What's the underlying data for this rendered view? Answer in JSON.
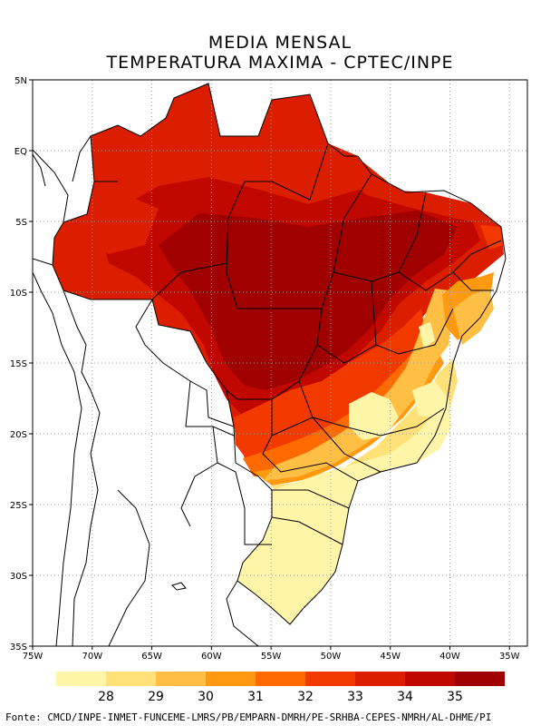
{
  "title": {
    "line1": "MEDIA MENSAL",
    "line2": "TEMPERATURA MAXIMA - CPTEC/INPE"
  },
  "axes": {
    "lat_labels": [
      "5N",
      "EQ",
      "5S",
      "10S",
      "15S",
      "20S",
      "25S",
      "30S",
      "35S"
    ],
    "lat_values": [
      5,
      0,
      -5,
      -10,
      -15,
      -20,
      -25,
      -30,
      -35
    ],
    "lon_labels": [
      "75W",
      "70W",
      "65W",
      "60W",
      "55W",
      "50W",
      "45W",
      "40W",
      "35W"
    ],
    "lon_values": [
      -75,
      -70,
      -65,
      -60,
      -55,
      -50,
      -45,
      -40,
      -35
    ],
    "lon_range": [
      -75,
      -33.5
    ],
    "lat_range": [
      -35,
      5
    ],
    "grid": "dotted"
  },
  "legend": {
    "labels": [
      "28",
      "29",
      "30",
      "31",
      "32",
      "33",
      "34",
      "35"
    ],
    "colors": [
      "#fff5a8",
      "#ffe178",
      "#ffbe44",
      "#ff9a10",
      "#ff6a00",
      "#f23a00",
      "#dc1e00",
      "#c00800",
      "#a00000"
    ]
  },
  "colors": {
    "c28": "#fff5a8",
    "c29": "#ffe178",
    "c30": "#ffbe44",
    "c31": "#ff9a10",
    "c32": "#ff6a00",
    "c33": "#f23a00",
    "c34": "#dc1e00",
    "c35": "#c00800",
    "c36": "#a00000"
  },
  "source": "Fonte: CMCD/INPE-INMET-FUNCEME-LMRS/PB/EMPARN-DMRH/PE-SRHBA-CEPES-NMRH/AL-DHME/PI"
}
